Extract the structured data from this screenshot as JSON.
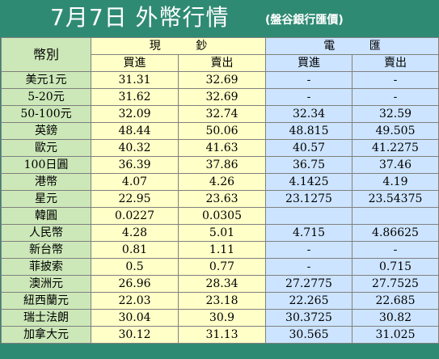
{
  "title": {
    "main": "7月7日 外幣行情",
    "sub": "(盤谷銀行匯價)"
  },
  "headers": {
    "currency": "幣別",
    "cash_left": "現",
    "cash_right": "鈔",
    "wire_left": "電",
    "wire_right": "匯",
    "buy": "買進",
    "sell": "賣出"
  },
  "rows": [
    {
      "currency": "美元1元",
      "cash_buy": "31.31",
      "cash_sell": "32.69",
      "wire_buy": "-",
      "wire_sell": "-"
    },
    {
      "currency": "5-20元",
      "cash_buy": "31.62",
      "cash_sell": "32.69",
      "wire_buy": "-",
      "wire_sell": "-"
    },
    {
      "currency": "50-100元",
      "cash_buy": "32.09",
      "cash_sell": "32.74",
      "wire_buy": "32.34",
      "wire_sell": "32.59"
    },
    {
      "currency": "英鎊",
      "cash_buy": "48.44",
      "cash_sell": "50.06",
      "wire_buy": "48.815",
      "wire_sell": "49.505"
    },
    {
      "currency": "歐元",
      "cash_buy": "40.32",
      "cash_sell": "41.63",
      "wire_buy": "40.57",
      "wire_sell": "41.2275"
    },
    {
      "currency": "100日圓",
      "cash_buy": "36.39",
      "cash_sell": "37.86",
      "wire_buy": "36.75",
      "wire_sell": "37.46"
    },
    {
      "currency": "港幣",
      "cash_buy": "4.07",
      "cash_sell": "4.26",
      "wire_buy": "4.1425",
      "wire_sell": "4.19"
    },
    {
      "currency": "星元",
      "cash_buy": "22.95",
      "cash_sell": "23.63",
      "wire_buy": "23.1275",
      "wire_sell": "23.54375"
    },
    {
      "currency": "韓圓",
      "cash_buy": "0.0227",
      "cash_sell": "0.0305",
      "wire_buy": "",
      "wire_sell": ""
    },
    {
      "currency": "人民幣",
      "cash_buy": "4.28",
      "cash_sell": "5.01",
      "wire_buy": "4.715",
      "wire_sell": "4.86625"
    },
    {
      "currency": "新台幣",
      "cash_buy": "0.81",
      "cash_sell": "1.11",
      "wire_buy": "-",
      "wire_sell": "-"
    },
    {
      "currency": "菲披索",
      "cash_buy": "0.5",
      "cash_sell": "0.77",
      "wire_buy": "-",
      "wire_sell": "0.715"
    },
    {
      "currency": "澳洲元",
      "cash_buy": "26.96",
      "cash_sell": "28.34",
      "wire_buy": "27.2775",
      "wire_sell": "27.7525"
    },
    {
      "currency": "紐西蘭元",
      "cash_buy": "22.03",
      "cash_sell": "23.18",
      "wire_buy": "22.265",
      "wire_sell": "22.685"
    },
    {
      "currency": "瑞士法朗",
      "cash_buy": "30.04",
      "cash_sell": "30.9",
      "wire_buy": "30.3725",
      "wire_sell": "30.82"
    },
    {
      "currency": "加拿大元",
      "cash_buy": "30.12",
      "cash_sell": "31.13",
      "wire_buy": "30.565",
      "wire_sell": "31.025"
    }
  ],
  "colors": {
    "title_background": "#2f8a73",
    "currency_column": "#cce8b8",
    "cash_columns": "#ffffc8",
    "wire_columns": "#cce4ff"
  }
}
